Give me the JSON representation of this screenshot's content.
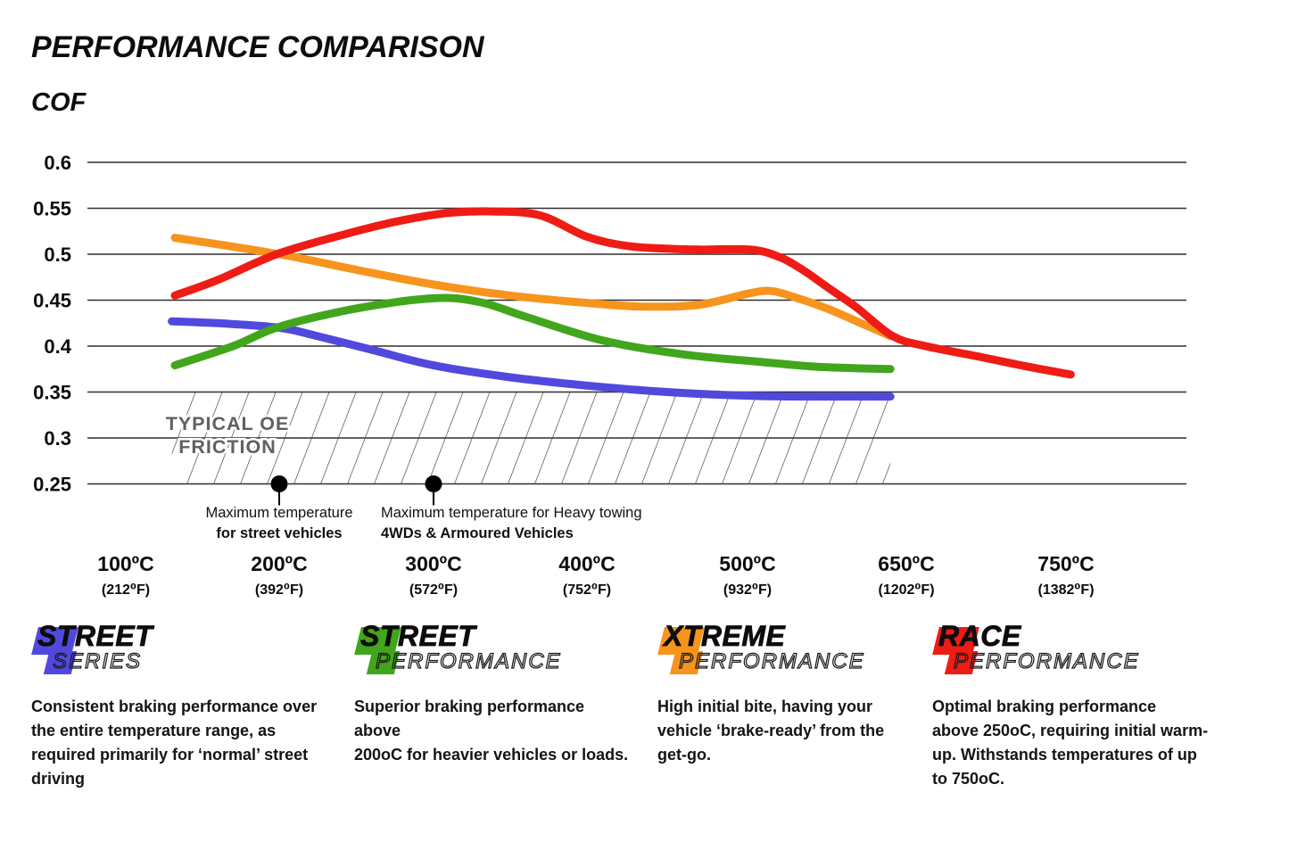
{
  "page": {
    "title": "PERFORMANCE COMPARISON",
    "y_axis_title": "COF"
  },
  "chart_data": {
    "type": "line",
    "title": "PERFORMANCE COMPARISON",
    "ylabel": "COF",
    "ylim": [
      0.25,
      0.6
    ],
    "grid": "horizontal",
    "yticks": [
      0.6,
      0.55,
      0.5,
      0.45,
      0.4,
      0.35,
      0.3,
      0.25
    ],
    "xticks": [
      {
        "t": 100,
        "c": "100ºC",
        "f": "(212⁰F)"
      },
      {
        "t": 200,
        "c": "200ºC",
        "f": "(392⁰F)"
      },
      {
        "t": 300,
        "c": "300ºC",
        "f": "(572⁰F)"
      },
      {
        "t": 400,
        "c": "400ºC",
        "f": "(752⁰F)"
      },
      {
        "t": 500,
        "c": "500ºC",
        "f": "(932⁰F)"
      },
      {
        "t": 650,
        "c": "650ºC",
        "f": "(1202⁰F)"
      },
      {
        "t": 750,
        "c": "750ºC",
        "f": "(1382⁰F)"
      }
    ],
    "series": [
      {
        "name": "Street Series",
        "color": "#5149dd",
        "points": [
          [
            130,
            0.427
          ],
          [
            165,
            0.4245
          ],
          [
            200,
            0.42
          ],
          [
            222,
            0.412
          ],
          [
            260,
            0.396
          ],
          [
            300,
            0.379
          ],
          [
            350,
            0.366
          ],
          [
            400,
            0.357
          ],
          [
            450,
            0.35
          ],
          [
            500,
            0.346
          ],
          [
            560,
            0.345
          ],
          [
            635,
            0.345
          ]
        ]
      },
      {
        "name": "Xtreme Performance",
        "color": "#f7941d",
        "points": [
          [
            132,
            0.518
          ],
          [
            200,
            0.5
          ],
          [
            250,
            0.483
          ],
          [
            300,
            0.467
          ],
          [
            350,
            0.455
          ],
          [
            400,
            0.447
          ],
          [
            435,
            0.443
          ],
          [
            470,
            0.445
          ],
          [
            500,
            0.457
          ],
          [
            522,
            0.46
          ],
          [
            545,
            0.453
          ],
          [
            575,
            0.441
          ],
          [
            605,
            0.426
          ],
          [
            635,
            0.411
          ]
        ]
      },
      {
        "name": "Street Performance",
        "color": "#41a61c",
        "points": [
          [
            132,
            0.379
          ],
          [
            170,
            0.4
          ],
          [
            200,
            0.421
          ],
          [
            250,
            0.441
          ],
          [
            300,
            0.452
          ],
          [
            330,
            0.448
          ],
          [
            360,
            0.432
          ],
          [
            410,
            0.406
          ],
          [
            460,
            0.391
          ],
          [
            510,
            0.383
          ],
          [
            560,
            0.378
          ],
          [
            600,
            0.376
          ],
          [
            635,
            0.375
          ]
        ]
      },
      {
        "name": "Race Performance",
        "color": "#ee1c14",
        "points": [
          [
            132,
            0.455
          ],
          [
            160,
            0.472
          ],
          [
            200,
            0.501
          ],
          [
            250,
            0.525
          ],
          [
            280,
            0.537
          ],
          [
            310,
            0.545
          ],
          [
            340,
            0.5465
          ],
          [
            370,
            0.542
          ],
          [
            400,
            0.519
          ],
          [
            425,
            0.509
          ],
          [
            450,
            0.506
          ],
          [
            470,
            0.505
          ],
          [
            503,
            0.505
          ],
          [
            530,
            0.497
          ],
          [
            552,
            0.483
          ],
          [
            578,
            0.462
          ],
          [
            603,
            0.442
          ],
          [
            637,
            0.411
          ],
          [
            662,
            0.4
          ],
          [
            697,
            0.388
          ],
          [
            725,
            0.378
          ],
          [
            753,
            0.369
          ]
        ]
      }
    ],
    "oe_band": {
      "label_line1": "TYPICAL OE",
      "label_line2": "FRICTION",
      "cof_min": 0.25,
      "cof_max": 0.35,
      "t_min": 130,
      "t_max": 635
    },
    "markers": [
      {
        "t": 200,
        "cof": 0.25,
        "align": "center",
        "line1": "Maximum temperature",
        "line2": "for street vehicles"
      },
      {
        "t": 300,
        "cof": 0.25,
        "align": "left",
        "line1": "Maximum temperature for Heavy towing",
        "line2": "4WDs & Armoured Vehicles"
      }
    ]
  },
  "legend": [
    {
      "word1": "STREET",
      "word2": "SERIES",
      "color": "#5149dd",
      "description": [
        "Consistent braking performance over",
        "the entire temperature range, as",
        "required primarily for ‘normal’ street",
        "driving"
      ]
    },
    {
      "word1": "STREET",
      "word2": "PERFORMANCE",
      "color": "#41a61c",
      "description": [
        "Superior braking performance above",
        "200oC for heavier vehicles or loads."
      ]
    },
    {
      "word1": "XTREME",
      "word2": "PERFORMANCE",
      "color": "#f7941d",
      "description": [
        "High initial bite, having your",
        "vehicle ‘brake-ready’ from the",
        "get-go."
      ]
    },
    {
      "word1": "RACE",
      "word2": "PERFORMANCE",
      "color": "#ee1c14",
      "description": [
        "Optimal braking performance",
        "above 250oC, requiring initial warm-",
        "up. Withstands temperatures of up",
        "to 750oC."
      ]
    }
  ]
}
